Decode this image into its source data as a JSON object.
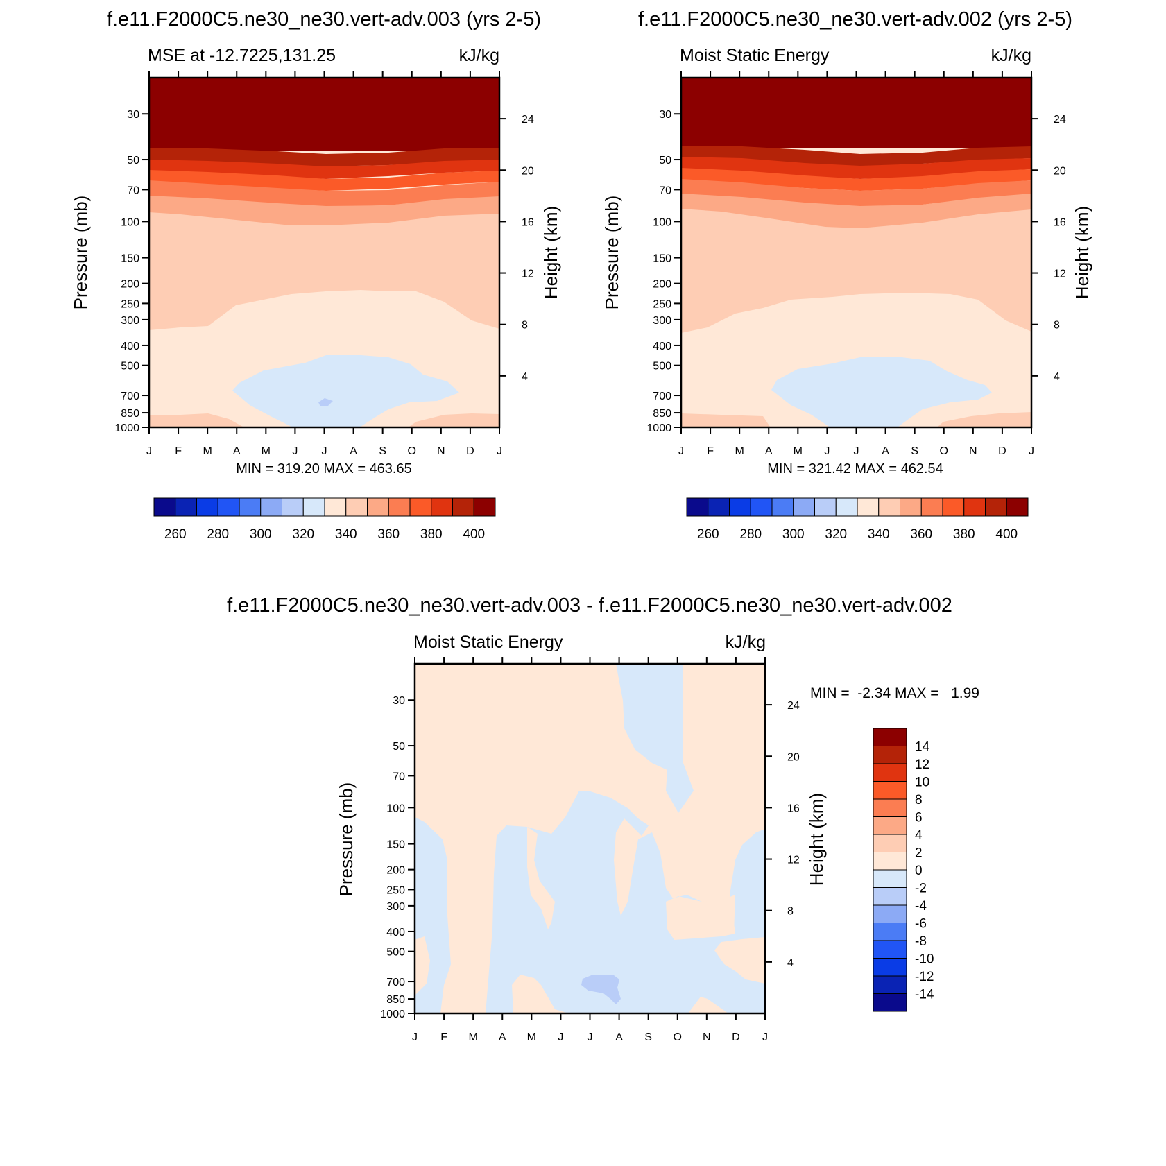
{
  "figure": {
    "panels": [
      {
        "id": "p1",
        "title": "f.e11.F2000C5.ne30_ne30.vert-adv.003 (yrs 2-5)",
        "left_label": "MSE at -12.7225,131.25",
        "units": "kJ/kg",
        "y_label": "Pressure (mb)",
        "y2_label": "Height (km)",
        "pressure_ticks": [
          "30",
          "50",
          "70",
          "100",
          "150",
          "200",
          "250",
          "300",
          "400",
          "500",
          "700",
          "850",
          "1000"
        ],
        "height_ticks": [
          "24",
          "20",
          "16",
          "12",
          "8",
          "4"
        ],
        "month_ticks": [
          "J",
          "F",
          "M",
          "A",
          "M",
          "J",
          "J",
          "A",
          "S",
          "O",
          "N",
          "D",
          "J"
        ],
        "stats": "MIN = 319.20 MAX = 463.65"
      },
      {
        "id": "p2",
        "title": "f.e11.F2000C5.ne30_ne30.vert-adv.002 (yrs 2-5)",
        "left_label": "Moist Static Energy",
        "units": "kJ/kg",
        "y_label": "Pressure (mb)",
        "y2_label": "Height (km)",
        "pressure_ticks": [
          "30",
          "50",
          "70",
          "100",
          "150",
          "200",
          "250",
          "300",
          "400",
          "500",
          "700",
          "850",
          "1000"
        ],
        "height_ticks": [
          "24",
          "20",
          "16",
          "12",
          "8",
          "4"
        ],
        "month_ticks": [
          "J",
          "F",
          "M",
          "A",
          "M",
          "J",
          "J",
          "A",
          "S",
          "O",
          "N",
          "D",
          "J"
        ],
        "stats": "MIN = 321.42 MAX = 462.54"
      },
      {
        "id": "p3",
        "title": "f.e11.F2000C5.ne30_ne30.vert-adv.003 - f.e11.F2000C5.ne30_ne30.vert-adv.002",
        "left_label": "Moist Static Energy",
        "units": "kJ/kg",
        "y_label": "Pressure (mb)",
        "y2_label": "Height (km)",
        "pressure_ticks": [
          "30",
          "50",
          "70",
          "100",
          "150",
          "200",
          "250",
          "300",
          "400",
          "500",
          "700",
          "850",
          "1000"
        ],
        "height_ticks": [
          "24",
          "20",
          "16",
          "12",
          "8",
          "4"
        ],
        "month_ticks": [
          "J",
          "F",
          "M",
          "A",
          "M",
          "J",
          "J",
          "A",
          "S",
          "O",
          "N",
          "D",
          "J"
        ],
        "stats": "MIN =  -2.34 MAX =   1.99"
      }
    ],
    "colorbar_top": {
      "labels": [
        "260",
        "280",
        "300",
        "320",
        "340",
        "360",
        "380",
        "400"
      ],
      "colors": [
        "#0a0a8c",
        "#0a23b4",
        "#0a3ce6",
        "#2155f5",
        "#4b7cf5",
        "#8caaf5",
        "#b9cdf8",
        "#d7e8fa",
        "#ffe8d7",
        "#fecdb4",
        "#fca986",
        "#fb7d52",
        "#fb5a28",
        "#e03410",
        "#b42308",
        "#8c0000"
      ]
    },
    "colorbar_bottom": {
      "labels": [
        "14",
        "12",
        "10",
        "8",
        "6",
        "4",
        "2",
        "0",
        "-2",
        "-4",
        "-6",
        "-8",
        "-10",
        "-12",
        "-14"
      ],
      "colors": [
        "#8c0000",
        "#b42308",
        "#e03410",
        "#fb5a28",
        "#fb7d52",
        "#fca986",
        "#fecdb4",
        "#ffe8d7",
        "#d7e8fa",
        "#b9cdf8",
        "#8caaf5",
        "#4b7cf5",
        "#2155f5",
        "#0a3ce6",
        "#0a23b4",
        "#0a0a8c"
      ]
    }
  },
  "chart_data": [
    {
      "type": "heatmap",
      "title": "f.e11.F2000C5.ne30_ne30.vert-adv.003 (yrs 2-5)",
      "subtitle": "MSE at -12.7225,131.25",
      "units": "kJ/kg",
      "xlabel": "",
      "ylabel": "Pressure (mb)",
      "y2label": "Height (km)",
      "x": [
        "J",
        "F",
        "M",
        "A",
        "M",
        "J",
        "J",
        "A",
        "S",
        "O",
        "N",
        "D",
        "J"
      ],
      "y_pressure_mb": [
        1000,
        850,
        700,
        500,
        400,
        300,
        250,
        200,
        150,
        100,
        70,
        50,
        30
      ],
      "log_y": true,
      "contour_levels": [
        250,
        260,
        270,
        280,
        290,
        300,
        310,
        320,
        330,
        340,
        350,
        360,
        370,
        380,
        390,
        400
      ],
      "approx_values": "MSE ~320-330 near 700-850 mb in Jun-Aug, ~330-340 in lower/mid troposphere, ~340-350 from 400 to 100 mb, increasing rapidly above 100 mb to >400 above 50 mb",
      "min": 319.2,
      "max": 463.65
    },
    {
      "type": "heatmap",
      "title": "f.e11.F2000C5.ne30_ne30.vert-adv.002 (yrs 2-5)",
      "subtitle": "Moist Static Energy",
      "units": "kJ/kg",
      "xlabel": "",
      "ylabel": "Pressure (mb)",
      "y2label": "Height (km)",
      "x": [
        "J",
        "F",
        "M",
        "A",
        "M",
        "J",
        "J",
        "A",
        "S",
        "O",
        "N",
        "D",
        "J"
      ],
      "y_pressure_mb": [
        1000,
        850,
        700,
        500,
        400,
        300,
        250,
        200,
        150,
        100,
        70,
        50,
        30
      ],
      "log_y": true,
      "contour_levels": [
        250,
        260,
        270,
        280,
        290,
        300,
        310,
        320,
        330,
        340,
        350,
        360,
        370,
        380,
        390,
        400
      ],
      "min": 321.42,
      "max": 462.54
    },
    {
      "type": "heatmap",
      "title": "f.e11.F2000C5.ne30_ne30.vert-adv.003 - f.e11.F2000C5.ne30_ne30.vert-adv.002",
      "subtitle": "Moist Static Energy",
      "units": "kJ/kg",
      "xlabel": "",
      "ylabel": "Pressure (mb)",
      "y2label": "Height (km)",
      "x": [
        "J",
        "F",
        "M",
        "A",
        "M",
        "J",
        "J",
        "A",
        "S",
        "O",
        "N",
        "D",
        "J"
      ],
      "y_pressure_mb": [
        1000,
        850,
        700,
        500,
        400,
        300,
        250,
        200,
        150,
        100,
        70,
        50,
        30
      ],
      "log_y": true,
      "contour_levels": [
        -14,
        -12,
        -10,
        -8,
        -6,
        -4,
        -2,
        0,
        2,
        4,
        6,
        8,
        10,
        12,
        14
      ],
      "min": -2.34,
      "max": 1.99
    }
  ]
}
